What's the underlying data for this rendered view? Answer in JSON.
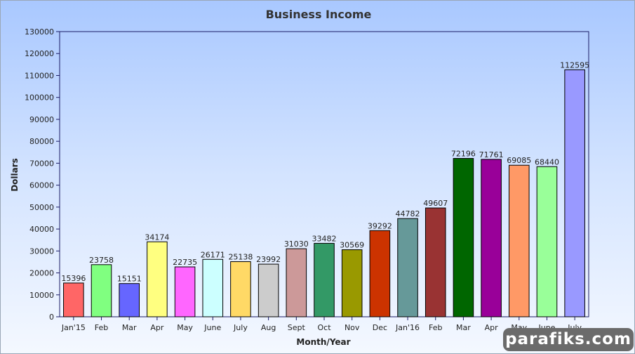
{
  "chart_data": {
    "type": "bar",
    "title": "Business Income",
    "xlabel": "Month/Year",
    "ylabel": "Dollars",
    "ylim": [
      0,
      130000
    ],
    "yticks": [
      0,
      10000,
      20000,
      30000,
      40000,
      50000,
      60000,
      70000,
      80000,
      90000,
      100000,
      110000,
      120000,
      130000
    ],
    "grid": false,
    "categories": [
      "Jan'15",
      "Feb",
      "Mar",
      "Apr",
      "May",
      "June",
      "July",
      "Aug",
      "Sept",
      "Oct",
      "Nov",
      "Dec",
      "Jan'16",
      "Feb",
      "Mar",
      "Apr",
      "May",
      "June",
      "July"
    ],
    "values": [
      15396,
      23758,
      15151,
      34174,
      22735,
      26171,
      25138,
      23992,
      31030,
      33482,
      30569,
      39292,
      44782,
      49607,
      72196,
      71761,
      69085,
      68440,
      112595
    ],
    "bar_colors": [
      "#ff6666",
      "#80ff80",
      "#6666ff",
      "#ffff80",
      "#ff66ff",
      "#ccffff",
      "#ffd966",
      "#cccccc",
      "#cc9999",
      "#339966",
      "#999900",
      "#cc3300",
      "#669999",
      "#993333",
      "#006600",
      "#990099",
      "#ff9966",
      "#99ff99",
      "#9999ff"
    ]
  },
  "watermark": {
    "text": "parafiks.com"
  }
}
